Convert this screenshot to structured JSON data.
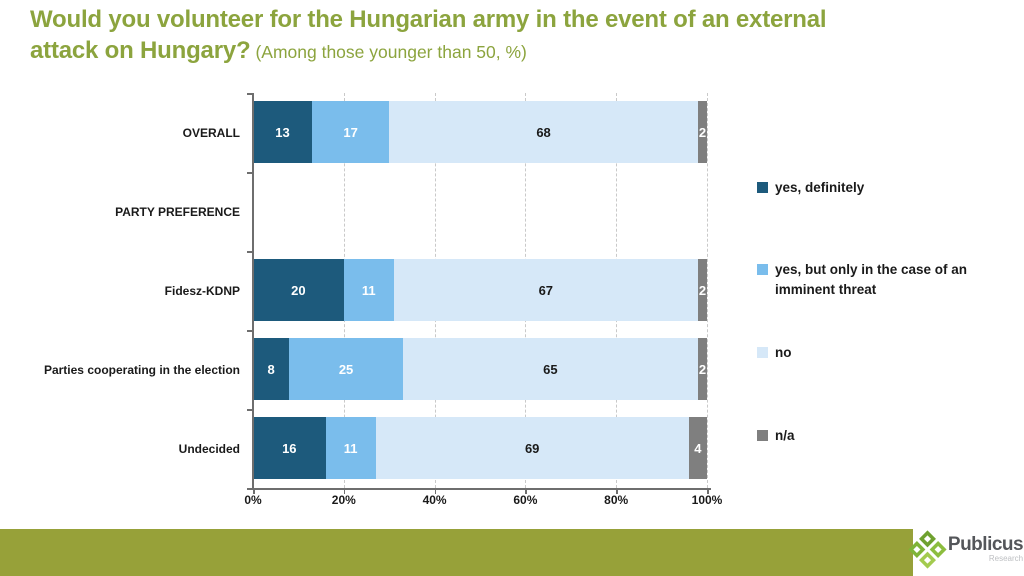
{
  "title": {
    "line1": "Would you volunteer for the Hungarian army in the event of an external",
    "line2_bold": "attack on Hungary?",
    "line2_sub": "(Among those younger than 50, %)"
  },
  "colors": {
    "title_green": "#8CA43E",
    "footer_green": "#97A139",
    "axis": "#6E6E6E",
    "gridline": "#C9C9C9",
    "dark_blue": "#1D5A7C",
    "mid_blue": "#7ABDEC",
    "light_blue": "#D6E8F8",
    "gray": "#7F7F7F",
    "logo_green_1": "#6FA12F",
    "logo_green_2": "#8CBD3E",
    "logo_green_3": "#7FB437",
    "logo_green_4": "#A3CB4F"
  },
  "chart_data": {
    "type": "bar",
    "orientation": "horizontal",
    "stacked": true,
    "title": "Would you volunteer for the Hungarian army in the event of an external attack on Hungary?",
    "subtitle": "(Among those younger than 50, %)",
    "categories": [
      "OVERALL",
      "PARTY PREFERENCE",
      "Fidesz-KDNP",
      "Parties cooperating  in the election",
      "Undecided"
    ],
    "series": [
      {
        "name": "yes, definitely",
        "color": "#1D5A7C",
        "text_color": "#FFFFFF",
        "values": [
          13,
          null,
          20,
          8,
          16
        ]
      },
      {
        "name": "yes, but only in the case of an imminent threat",
        "color": "#7ABDEC",
        "text_color": "#FFFFFF",
        "values": [
          17,
          null,
          11,
          25,
          11
        ]
      },
      {
        "name": "no",
        "color": "#D6E8F8",
        "text_color": "#1A1A1A",
        "values": [
          68,
          null,
          67,
          65,
          69
        ]
      },
      {
        "name": "n/a",
        "color": "#7F7F7F",
        "text_color": "#FFFFFF",
        "values": [
          2,
          null,
          2,
          2,
          4
        ]
      }
    ],
    "xlim": [
      0,
      100
    ],
    "x_ticks": [
      "0%",
      "20%",
      "40%",
      "60%",
      "80%",
      "100%"
    ],
    "grid": "vertical-dashed",
    "legend_position": "right"
  },
  "legend": {
    "items": [
      {
        "label": "yes, definitely",
        "color": "#1D5A7C"
      },
      {
        "label": "yes, but only in the case of an imminent threat",
        "color": "#7ABDEC"
      },
      {
        "label": "no",
        "color": "#D6E8F8"
      },
      {
        "label": "n/a",
        "color": "#7F7F7F"
      }
    ]
  },
  "footer": {
    "brand": "Publicus",
    "brand_sub": "Research"
  }
}
